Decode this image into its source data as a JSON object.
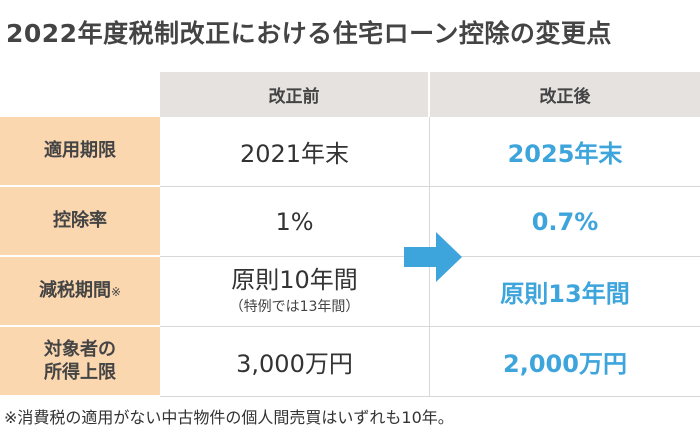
{
  "title": "2022年度税制改正における住宅ローン控除の変更点",
  "columns": {
    "before": "改正前",
    "after": "改正後"
  },
  "rows": [
    {
      "label": "適用期限",
      "before": "2021年末",
      "after": "2025年末"
    },
    {
      "label": "控除率",
      "before": "1%",
      "after": "0.7%"
    },
    {
      "label": "減税期間",
      "label_mark": "※",
      "before": "原則10年間",
      "before_note": "（特例では13年間）",
      "after": "原則13年間"
    },
    {
      "label_line1": "対象者の",
      "label_line2": "所得上限",
      "before": "3,000万円",
      "after": "2,000万円"
    }
  ],
  "footnote": "※消費税の適用がない中古物件の個人間売買はいずれも10年。",
  "colors": {
    "row_header_bg": "#fbd7b0",
    "column_header_bg": "#e6e2e0",
    "accent_blue": "#3da5dc"
  },
  "icons": {
    "arrow": "arrow-right-icon"
  }
}
